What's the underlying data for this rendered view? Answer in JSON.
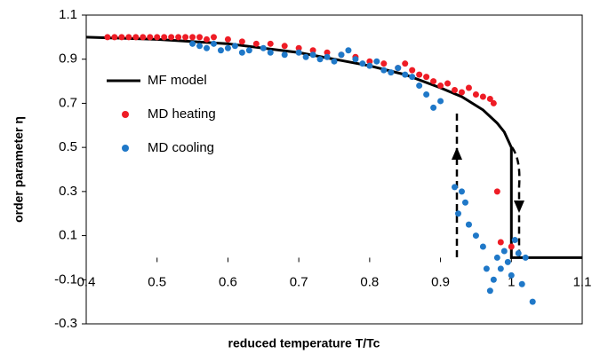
{
  "chart_data": {
    "type": "scatter",
    "xlabel": "reduced temperature T/Tc",
    "ylabel": "order parameter η",
    "xlim": [
      0.4,
      1.1
    ],
    "ylim": [
      -0.3,
      1.1
    ],
    "xticks": [
      0.4,
      0.5,
      0.6,
      0.7,
      0.8,
      0.9,
      1,
      1.1
    ],
    "yticks": [
      -0.3,
      -0.1,
      0.1,
      0.3,
      0.5,
      0.7,
      0.9,
      1.1
    ],
    "series": [
      {
        "name": "MF model",
        "color": "#000000",
        "mode": "line",
        "x": [
          0.4,
          0.5,
          0.6,
          0.7,
          0.75,
          0.8,
          0.85,
          0.9,
          0.93,
          0.96,
          0.98,
          0.99,
          1.0,
          1.0,
          1.1
        ],
        "values": [
          1.0,
          0.99,
          0.97,
          0.93,
          0.9,
          0.87,
          0.83,
          0.77,
          0.73,
          0.67,
          0.61,
          0.57,
          0.5,
          0,
          0
        ]
      },
      {
        "name": "MD heating",
        "color": "#ee1c25",
        "mode": "points",
        "x": [
          0.43,
          0.44,
          0.45,
          0.46,
          0.47,
          0.48,
          0.49,
          0.5,
          0.51,
          0.52,
          0.53,
          0.54,
          0.55,
          0.56,
          0.57,
          0.58,
          0.6,
          0.62,
          0.64,
          0.66,
          0.68,
          0.7,
          0.72,
          0.74,
          0.76,
          0.78,
          0.8,
          0.82,
          0.84,
          0.85,
          0.86,
          0.87,
          0.88,
          0.89,
          0.9,
          0.91,
          0.92,
          0.93,
          0.94,
          0.95,
          0.96,
          0.97,
          0.975,
          0.98,
          0.985,
          1.0
        ],
        "values": [
          1.0,
          1.0,
          1.0,
          1.0,
          1.0,
          1.0,
          1.0,
          1.0,
          1.0,
          1.0,
          1.0,
          1.0,
          1.0,
          1.0,
          0.99,
          1.0,
          0.99,
          0.98,
          0.97,
          0.97,
          0.96,
          0.95,
          0.94,
          0.93,
          0.92,
          0.91,
          0.89,
          0.88,
          0.86,
          0.88,
          0.85,
          0.83,
          0.82,
          0.8,
          0.78,
          0.79,
          0.76,
          0.75,
          0.77,
          0.74,
          0.73,
          0.72,
          0.7,
          0.3,
          0.07,
          0.05
        ]
      },
      {
        "name": "MD cooling",
        "color": "#1f78c8",
        "mode": "points",
        "x": [
          0.55,
          0.56,
          0.57,
          0.58,
          0.59,
          0.6,
          0.61,
          0.62,
          0.63,
          0.65,
          0.66,
          0.68,
          0.7,
          0.71,
          0.72,
          0.73,
          0.74,
          0.75,
          0.76,
          0.77,
          0.78,
          0.79,
          0.8,
          0.81,
          0.82,
          0.83,
          0.84,
          0.85,
          0.86,
          0.87,
          0.88,
          0.89,
          0.9,
          0.92,
          0.925,
          0.93,
          0.935,
          0.94,
          0.95,
          0.96,
          0.965,
          0.97,
          0.975,
          0.98,
          0.985,
          0.99,
          0.995,
          1.0,
          1.005,
          1.01,
          1.015,
          1.02,
          1.03
        ],
        "values": [
          0.97,
          0.96,
          0.95,
          0.97,
          0.94,
          0.95,
          0.96,
          0.93,
          0.94,
          0.95,
          0.93,
          0.92,
          0.93,
          0.91,
          0.92,
          0.9,
          0.91,
          0.89,
          0.92,
          0.94,
          0.9,
          0.88,
          0.87,
          0.89,
          0.85,
          0.84,
          0.86,
          0.83,
          0.82,
          0.78,
          0.74,
          0.68,
          0.71,
          0.32,
          0.2,
          0.3,
          0.25,
          0.15,
          0.1,
          0.05,
          -0.05,
          -0.15,
          -0.1,
          0.0,
          -0.05,
          0.03,
          -0.02,
          -0.08,
          0.08,
          0.02,
          -0.12,
          0.0,
          -0.2
        ]
      }
    ]
  }
}
